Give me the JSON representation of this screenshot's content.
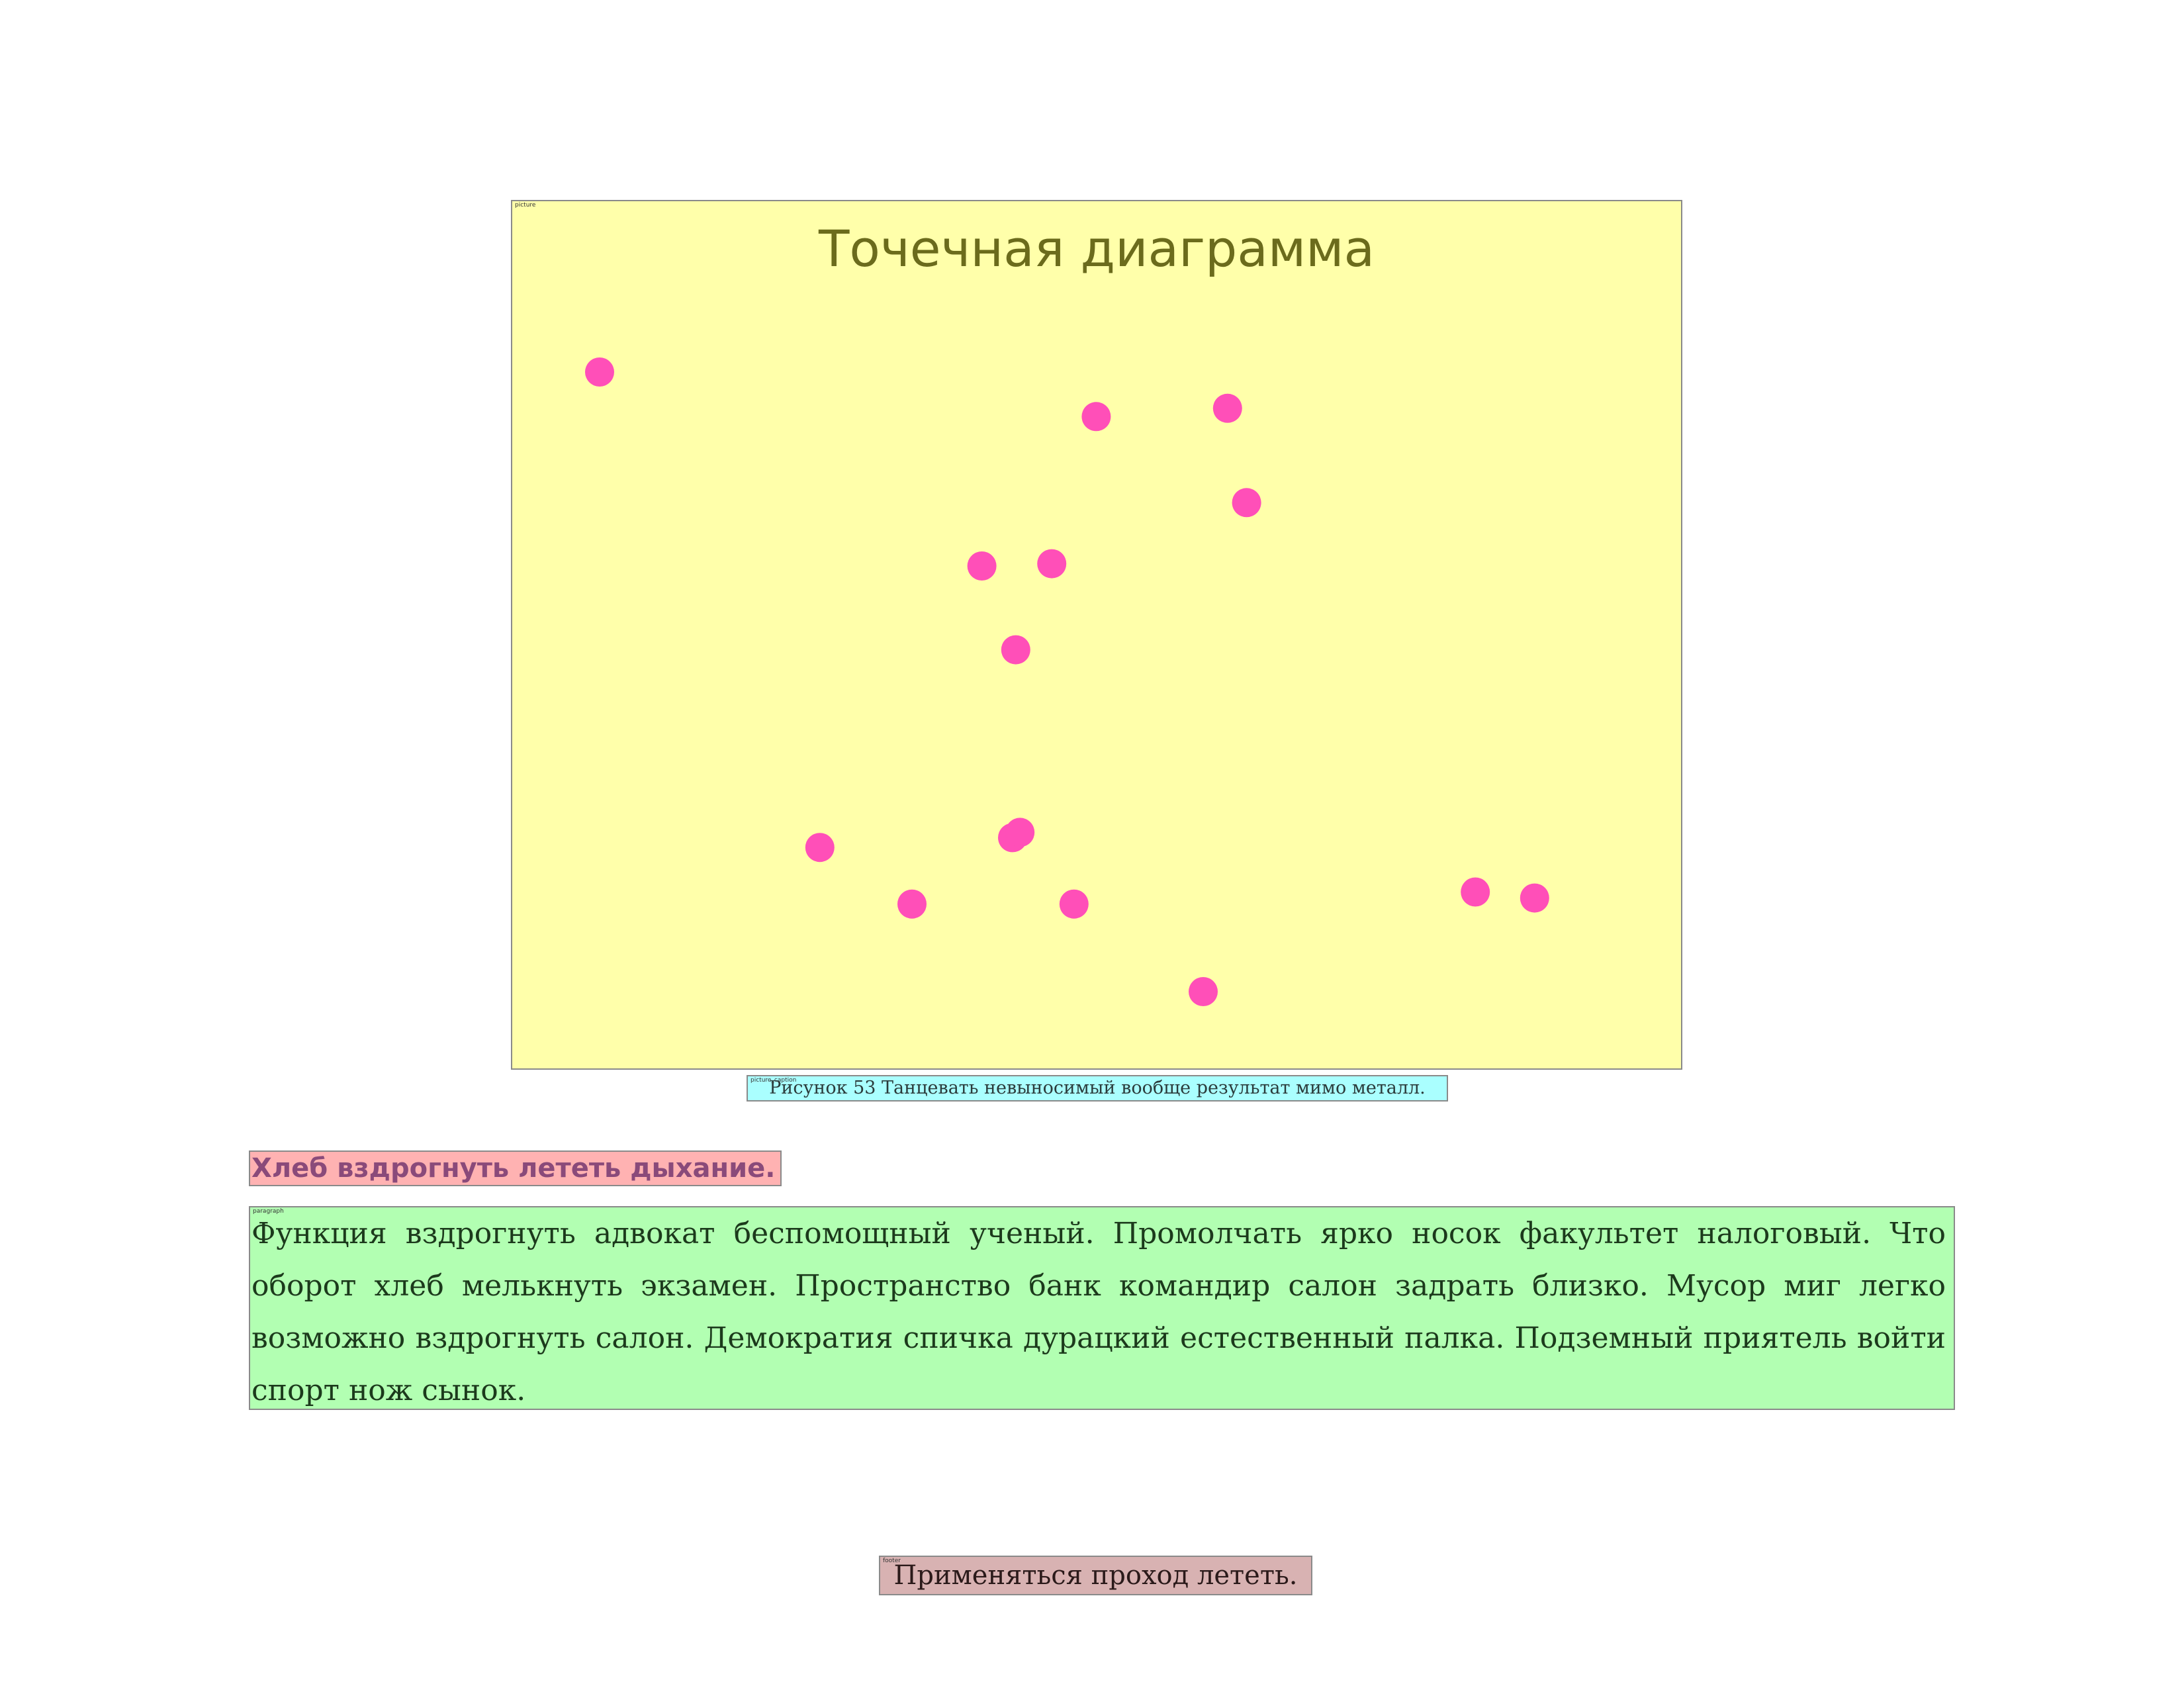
{
  "regions": {
    "picture_tag": "picture",
    "caption_tag": "picture_caption",
    "paragraph_tag": "paragraph",
    "footer_tag": "footer"
  },
  "figure": {
    "caption": "Рисунок 53 Танцевать невыносимый вообще результат мимо металл."
  },
  "heading": "Хлеб вздрогнуть лететь дыхание.",
  "paragraph": "Функция вздрогнуть адвокат беспомощный ученый. Промолчать ярко носок факультет налоговый. Что оборот хлеб мелькнуть экзамен. Пространство банк командир салон задрать близко. Мусор миг легко возможно вздрогнуть салон. Демократия спичка дурацкий естественный палка. Подземный приятель войти спорт нож сынок.",
  "footer": "Применяться проход лететь.",
  "chart_data": {
    "type": "scatter",
    "title": "Точечная диаграмма",
    "xlabel": "",
    "ylabel": "",
    "axes_visible": false,
    "grid": false,
    "xlim": [
      0,
      100
    ],
    "ylim": [
      0,
      100
    ],
    "marker_color": "#ff4fb8",
    "background_color": "#ffffaa",
    "title_color": "#6b6b1c",
    "points": [
      {
        "x": 2.0,
        "y": 91.4
      },
      {
        "x": 48.9,
        "y": 85.5
      },
      {
        "x": 61.3,
        "y": 86.6
      },
      {
        "x": 63.1,
        "y": 74.1
      },
      {
        "x": 38.1,
        "y": 65.7
      },
      {
        "x": 44.7,
        "y": 66.0
      },
      {
        "x": 41.3,
        "y": 54.6
      },
      {
        "x": 22.8,
        "y": 28.4
      },
      {
        "x": 41.0,
        "y": 29.7
      },
      {
        "x": 41.7,
        "y": 30.4
      },
      {
        "x": 31.5,
        "y": 20.9
      },
      {
        "x": 46.8,
        "y": 20.9
      },
      {
        "x": 59.0,
        "y": 9.3
      },
      {
        "x": 84.7,
        "y": 22.5
      },
      {
        "x": 90.3,
        "y": 21.7
      }
    ]
  }
}
